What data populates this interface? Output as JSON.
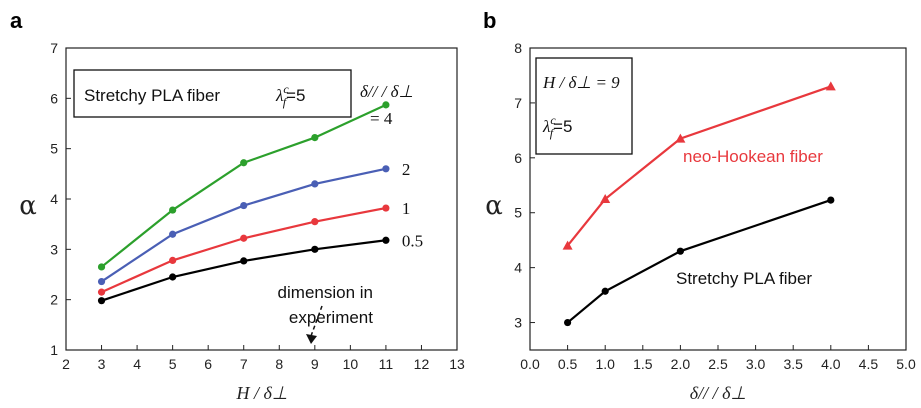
{
  "chart_data": [
    {
      "panel_label": "a",
      "type": "line",
      "xlabel": "H / δ⊥",
      "ylabel": "α",
      "xlim": [
        2,
        13
      ],
      "ylim": [
        1,
        7
      ],
      "xticks": [
        "2",
        "3",
        "4",
        "5",
        "6",
        "7",
        "8",
        "9",
        "10",
        "11",
        "12",
        "13"
      ],
      "yticks": [
        "1",
        "2",
        "3",
        "4",
        "5",
        "6",
        "7"
      ],
      "annotation_box": {
        "text": "Stretchy PLA fiber",
        "param": "λ",
        "param_sup": "c",
        "param_sub": "f",
        "param_value": "=5"
      },
      "legend_title_line1": "δ// / δ⊥",
      "legend_title_line2": "= 4",
      "dimension_note_line1": "dimension in",
      "dimension_note_line2": "experiment",
      "series": [
        {
          "name": "4",
          "color": "#2ca02c",
          "x": [
            3,
            5,
            7,
            9,
            11
          ],
          "y": [
            2.65,
            3.78,
            4.72,
            5.22,
            5.87
          ]
        },
        {
          "name": "2",
          "color": "#4a5fb5",
          "x": [
            3,
            5,
            7,
            9,
            11
          ],
          "y": [
            2.36,
            3.3,
            3.87,
            4.3,
            4.6
          ]
        },
        {
          "name": "1",
          "color": "#e8383d",
          "x": [
            3,
            5,
            7,
            9,
            11
          ],
          "y": [
            2.15,
            2.78,
            3.22,
            3.55,
            3.82
          ]
        },
        {
          "name": "0.5",
          "color": "#000000",
          "x": [
            3,
            5,
            7,
            9,
            11
          ],
          "y": [
            1.98,
            2.45,
            2.77,
            3.0,
            3.18
          ]
        }
      ]
    },
    {
      "panel_label": "b",
      "type": "line",
      "xlabel": "δ// / δ⊥",
      "ylabel": "α",
      "xlim": [
        0.0,
        5.0
      ],
      "ylim": [
        2.5,
        8
      ],
      "xticks": [
        "0.0",
        "0.5",
        "1.0",
        "1.5",
        "2.0",
        "2.5",
        "3.0",
        "3.5",
        "4.0",
        "4.5",
        "5.0"
      ],
      "yticks": [
        "3",
        "4",
        "5",
        "6",
        "7",
        "8"
      ],
      "annotation_box": {
        "line1": "H / δ⊥ = 9",
        "param": "λ",
        "param_sup": "c",
        "param_sub": "f",
        "param_value": "=5"
      },
      "series": [
        {
          "name": "neo-Hookean fiber",
          "color": "#e8383d",
          "marker": "triangle",
          "x": [
            0.5,
            1,
            2,
            4
          ],
          "y": [
            4.4,
            5.25,
            6.35,
            7.3
          ]
        },
        {
          "name": "Stretchy PLA fiber",
          "color": "#000000",
          "marker": "circle",
          "x": [
            0.5,
            1,
            2,
            4
          ],
          "y": [
            3.0,
            3.57,
            4.3,
            5.23
          ]
        }
      ]
    }
  ]
}
